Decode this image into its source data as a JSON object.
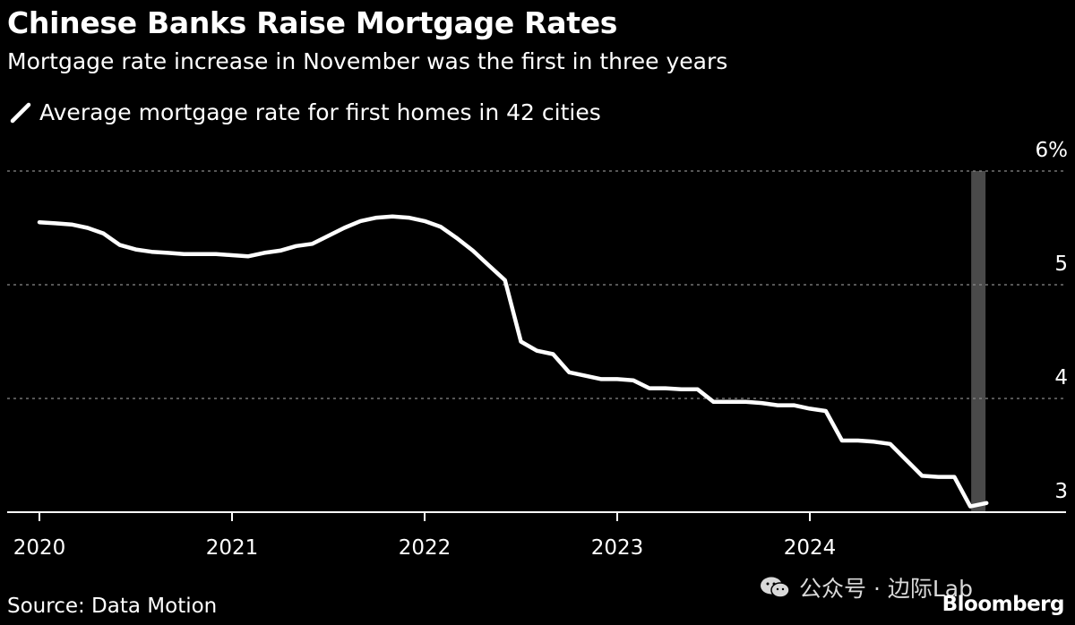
{
  "header": {
    "title": "Chinese Banks Raise Mortgage Rates",
    "subtitle": "Mortgage rate increase in November was the first in three years"
  },
  "footer": {
    "source": "Source: Data Motion",
    "watermark": "公众号 · 边际Lab",
    "brand": "Bloomberg"
  },
  "colors": {
    "background": "#000000",
    "line": "#ffffff",
    "grid": "#8a8a8a",
    "highlight": "#4a4a4a",
    "text": "#ffffff"
  },
  "chart_data": {
    "type": "line",
    "title": "Chinese Banks Raise Mortgage Rates",
    "subtitle": "Mortgage rate increase in November was the first in three years",
    "xlabel": "",
    "ylabel": "",
    "xlim": [
      2020.0,
      2025.0
    ],
    "ylim": [
      3.0,
      6.0
    ],
    "grid": true,
    "legend_position": "top-left",
    "x_ticks": [
      2020,
      2021,
      2022,
      2023,
      2024
    ],
    "x_tick_labels": [
      "2020",
      "2021",
      "2022",
      "2023",
      "2024"
    ],
    "y_ticks": [
      3,
      4,
      5,
      6
    ],
    "y_tick_labels": [
      "3",
      "4",
      "5",
      "6%"
    ],
    "highlight_band": {
      "x": 2024.875,
      "label": "November"
    },
    "series": [
      {
        "name": "Average mortgage rate for first homes in 42 cities",
        "x": [
          2020.0,
          2020.083,
          2020.167,
          2020.25,
          2020.333,
          2020.417,
          2020.5,
          2020.583,
          2020.667,
          2020.75,
          2020.833,
          2020.917,
          2021.0,
          2021.083,
          2021.167,
          2021.25,
          2021.333,
          2021.417,
          2021.5,
          2021.583,
          2021.667,
          2021.75,
          2021.833,
          2021.917,
          2022.0,
          2022.083,
          2022.167,
          2022.25,
          2022.333,
          2022.417,
          2022.5,
          2022.583,
          2022.667,
          2022.75,
          2022.833,
          2022.917,
          2023.0,
          2023.083,
          2023.167,
          2023.25,
          2023.333,
          2023.417,
          2023.5,
          2023.583,
          2023.667,
          2023.75,
          2023.833,
          2023.917,
          2024.0,
          2024.083,
          2024.167,
          2024.25,
          2024.333,
          2024.417,
          2024.5,
          2024.583,
          2024.667,
          2024.75,
          2024.833,
          2024.917
        ],
        "values": [
          5.55,
          5.54,
          5.53,
          5.5,
          5.45,
          5.35,
          5.31,
          5.29,
          5.28,
          5.27,
          5.27,
          5.27,
          5.26,
          5.25,
          5.28,
          5.3,
          5.34,
          5.36,
          5.43,
          5.5,
          5.56,
          5.59,
          5.6,
          5.59,
          5.56,
          5.51,
          5.41,
          5.3,
          5.17,
          5.04,
          4.5,
          4.42,
          4.39,
          4.23,
          4.2,
          4.17,
          4.17,
          4.16,
          4.09,
          4.09,
          4.08,
          4.08,
          3.97,
          3.97,
          3.97,
          3.96,
          3.94,
          3.94,
          3.91,
          3.89,
          3.63,
          3.63,
          3.62,
          3.6,
          3.46,
          3.32,
          3.31,
          3.31,
          3.05,
          3.08
        ]
      }
    ]
  }
}
